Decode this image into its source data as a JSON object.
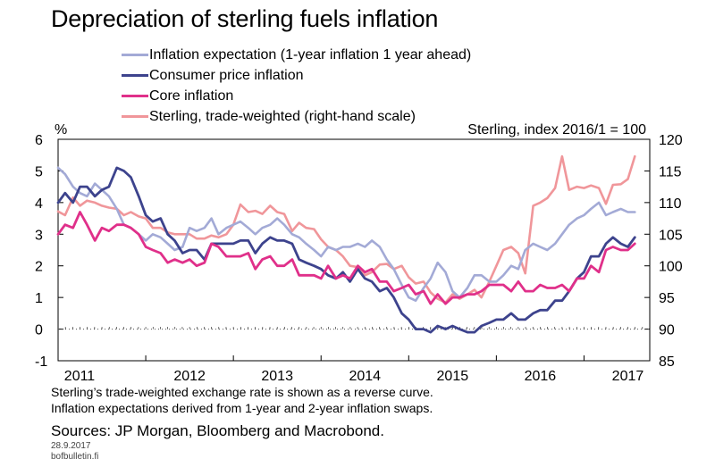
{
  "title": "Depreciation of sterling fuels inflation",
  "colors": {
    "inflation_expectation": "#a3aad6",
    "consumer_price_inflation": "#3d438d",
    "core_inflation": "#e0308a",
    "sterling": "#f0969a"
  },
  "legend": [
    {
      "label": "Inflation expectation (1-year inflation 1 year ahead)",
      "color": "#a3aad6"
    },
    {
      "label": "Consumer price inflation",
      "color": "#3d438d"
    },
    {
      "label": "Core inflation",
      "color": "#e0308a"
    },
    {
      "label": "Sterling, trade-weighted (right-hand scale)",
      "color": "#f0969a"
    }
  ],
  "notes": [
    "Sterling’s trade-weighted exchange rate is shown as a reverse curve.",
    "Inflation expectations derived from 1-year and 2-year inflation swaps."
  ],
  "sources": "Sources: JP Morgan, Bloomberg and Macrobond.",
  "date": "28.9.2017",
  "site": "bofbulletin.fi",
  "chart_data": {
    "type": "line",
    "ylabel": "%",
    "ylabel_right": "Sterling, index 2016/1 = 100",
    "ylim": [
      -1,
      6
    ],
    "ylim_right": [
      85,
      120
    ],
    "right_axis_reversed_curve": true,
    "yticks": [
      "6",
      "5",
      "4",
      "3",
      "2",
      "1",
      "0",
      "-1"
    ],
    "yticks_right": [
      "120",
      "115",
      "110",
      "105",
      "100",
      "95",
      "90",
      "85"
    ],
    "xticks": [
      "2011",
      "2012",
      "2013",
      "2014",
      "2015",
      "2016",
      "2017"
    ],
    "xlim": [
      2011.0,
      2017.75
    ],
    "grid": false,
    "zero_line": "dotted",
    "legend_position": "top",
    "series": [
      {
        "name": "Inflation expectation (1-year inflation 1 year ahead)",
        "key": "inflation_expectation",
        "axis": "left",
        "x": [
          2011.0,
          2011.08,
          2011.17,
          2011.25,
          2011.33,
          2011.42,
          2011.5,
          2011.58,
          2011.67,
          2011.75,
          2011.83,
          2011.92,
          2012.0,
          2012.08,
          2012.17,
          2012.25,
          2012.33,
          2012.42,
          2012.5,
          2012.58,
          2012.67,
          2012.75,
          2012.83,
          2012.92,
          2013.0,
          2013.08,
          2013.17,
          2013.25,
          2013.33,
          2013.42,
          2013.5,
          2013.58,
          2013.67,
          2013.75,
          2013.83,
          2013.92,
          2014.0,
          2014.08,
          2014.17,
          2014.25,
          2014.33,
          2014.42,
          2014.5,
          2014.58,
          2014.67,
          2014.75,
          2014.83,
          2014.92,
          2015.0,
          2015.08,
          2015.17,
          2015.25,
          2015.33,
          2015.42,
          2015.5,
          2015.58,
          2015.67,
          2015.75,
          2015.83,
          2015.92,
          2016.0,
          2016.08,
          2016.17,
          2016.25,
          2016.33,
          2016.42,
          2016.5,
          2016.58,
          2016.67,
          2016.75,
          2016.83,
          2016.92,
          2017.0,
          2017.08,
          2017.17,
          2017.25,
          2017.33,
          2017.42,
          2017.5,
          2017.58
        ],
        "y": [
          5.1,
          4.9,
          4.5,
          4.3,
          4.2,
          4.6,
          4.4,
          4.2,
          3.8,
          3.3,
          3.2,
          3.0,
          2.8,
          3.0,
          2.9,
          2.7,
          2.5,
          2.6,
          3.2,
          3.1,
          3.2,
          3.5,
          3.0,
          3.2,
          3.3,
          3.4,
          3.2,
          3.0,
          3.2,
          3.3,
          3.5,
          3.3,
          3.0,
          2.9,
          2.7,
          2.5,
          2.3,
          2.6,
          2.5,
          2.6,
          2.6,
          2.7,
          2.6,
          2.8,
          2.6,
          2.2,
          1.9,
          1.4,
          1.0,
          0.9,
          1.3,
          1.6,
          2.1,
          1.8,
          1.2,
          1.0,
          1.3,
          1.7,
          1.7,
          1.5,
          1.5,
          1.7,
          2.0,
          1.9,
          2.5,
          2.7,
          2.6,
          2.5,
          2.7,
          3.0,
          3.3,
          3.5,
          3.6,
          3.8,
          4.0,
          3.6,
          3.7,
          3.8,
          3.7,
          3.7
        ]
      },
      {
        "name": "Consumer price inflation",
        "key": "consumer_price_inflation",
        "axis": "left",
        "x": [
          2011.0,
          2011.08,
          2011.17,
          2011.25,
          2011.33,
          2011.42,
          2011.5,
          2011.58,
          2011.67,
          2011.75,
          2011.83,
          2011.92,
          2012.0,
          2012.08,
          2012.17,
          2012.25,
          2012.33,
          2012.42,
          2012.5,
          2012.58,
          2012.67,
          2012.75,
          2012.83,
          2012.92,
          2013.0,
          2013.08,
          2013.17,
          2013.25,
          2013.33,
          2013.42,
          2013.5,
          2013.58,
          2013.67,
          2013.75,
          2013.83,
          2013.92,
          2014.0,
          2014.08,
          2014.17,
          2014.25,
          2014.33,
          2014.42,
          2014.5,
          2014.58,
          2014.67,
          2014.75,
          2014.83,
          2014.92,
          2015.0,
          2015.08,
          2015.17,
          2015.25,
          2015.33,
          2015.42,
          2015.5,
          2015.58,
          2015.67,
          2015.75,
          2015.83,
          2015.92,
          2016.0,
          2016.08,
          2016.17,
          2016.25,
          2016.33,
          2016.42,
          2016.5,
          2016.58,
          2016.67,
          2016.75,
          2016.83,
          2016.92,
          2017.0,
          2017.08,
          2017.17,
          2017.25,
          2017.33,
          2017.42,
          2017.5,
          2017.58
        ],
        "y": [
          4.0,
          4.3,
          4.0,
          4.5,
          4.5,
          4.2,
          4.4,
          4.5,
          5.1,
          5.0,
          4.8,
          4.2,
          3.6,
          3.4,
          3.5,
          3.0,
          2.8,
          2.4,
          2.5,
          2.5,
          2.2,
          2.7,
          2.7,
          2.7,
          2.7,
          2.8,
          2.8,
          2.4,
          2.7,
          2.9,
          2.8,
          2.8,
          2.7,
          2.2,
          2.1,
          2.0,
          1.9,
          1.7,
          1.6,
          1.8,
          1.5,
          1.9,
          1.6,
          1.5,
          1.2,
          1.3,
          1.0,
          0.5,
          0.3,
          0.0,
          0.0,
          -0.1,
          0.1,
          0.0,
          0.1,
          0.0,
          -0.1,
          -0.1,
          0.1,
          0.2,
          0.3,
          0.3,
          0.5,
          0.3,
          0.3,
          0.5,
          0.6,
          0.6,
          0.9,
          0.9,
          1.2,
          1.6,
          1.8,
          2.3,
          2.3,
          2.7,
          2.9,
          2.7,
          2.6,
          2.9
        ]
      },
      {
        "name": "Core inflation",
        "key": "core_inflation",
        "axis": "left",
        "x": [
          2011.0,
          2011.08,
          2011.17,
          2011.25,
          2011.33,
          2011.42,
          2011.5,
          2011.58,
          2011.67,
          2011.75,
          2011.83,
          2011.92,
          2012.0,
          2012.08,
          2012.17,
          2012.25,
          2012.33,
          2012.42,
          2012.5,
          2012.58,
          2012.67,
          2012.75,
          2012.83,
          2012.92,
          2013.0,
          2013.08,
          2013.17,
          2013.25,
          2013.33,
          2013.42,
          2013.5,
          2013.58,
          2013.67,
          2013.75,
          2013.83,
          2013.92,
          2014.0,
          2014.08,
          2014.17,
          2014.25,
          2014.33,
          2014.42,
          2014.5,
          2014.58,
          2014.67,
          2014.75,
          2014.83,
          2014.92,
          2015.0,
          2015.08,
          2015.17,
          2015.25,
          2015.33,
          2015.42,
          2015.5,
          2015.58,
          2015.67,
          2015.75,
          2015.83,
          2015.92,
          2016.0,
          2016.08,
          2016.17,
          2016.25,
          2016.33,
          2016.42,
          2016.5,
          2016.58,
          2016.67,
          2016.75,
          2016.83,
          2016.92,
          2017.0,
          2017.08,
          2017.17,
          2017.25,
          2017.33,
          2017.42,
          2017.5,
          2017.58
        ],
        "y": [
          3.0,
          3.3,
          3.2,
          3.7,
          3.3,
          2.8,
          3.2,
          3.1,
          3.3,
          3.3,
          3.2,
          3.0,
          2.6,
          2.5,
          2.4,
          2.1,
          2.2,
          2.1,
          2.2,
          2.0,
          2.1,
          2.7,
          2.6,
          2.3,
          2.3,
          2.3,
          2.4,
          1.9,
          2.2,
          2.3,
          2.0,
          2.0,
          2.2,
          1.7,
          1.7,
          1.7,
          1.6,
          2.0,
          1.6,
          1.7,
          1.6,
          2.0,
          1.8,
          1.9,
          1.5,
          1.5,
          1.2,
          1.3,
          1.4,
          1.1,
          1.2,
          0.8,
          1.1,
          0.8,
          1.0,
          1.0,
          1.1,
          1.1,
          1.2,
          1.4,
          1.4,
          1.4,
          1.2,
          1.5,
          1.2,
          1.2,
          1.4,
          1.3,
          1.3,
          1.4,
          1.2,
          1.6,
          1.6,
          2.0,
          1.8,
          2.5,
          2.6,
          2.5,
          2.5,
          2.7
        ]
      },
      {
        "name": "Sterling, trade-weighted (right-hand scale)",
        "key": "sterling",
        "axis": "right",
        "x": [
          2011.0,
          2011.08,
          2011.17,
          2011.25,
          2011.33,
          2011.42,
          2011.5,
          2011.58,
          2011.67,
          2011.75,
          2011.83,
          2011.92,
          2012.0,
          2012.08,
          2012.17,
          2012.25,
          2012.33,
          2012.42,
          2012.5,
          2012.58,
          2012.67,
          2012.75,
          2012.83,
          2012.92,
          2013.0,
          2013.08,
          2013.17,
          2013.25,
          2013.33,
          2013.42,
          2013.5,
          2013.58,
          2013.67,
          2013.75,
          2013.83,
          2013.92,
          2014.0,
          2014.08,
          2014.17,
          2014.25,
          2014.33,
          2014.42,
          2014.5,
          2014.58,
          2014.67,
          2014.75,
          2014.83,
          2014.92,
          2015.0,
          2015.08,
          2015.17,
          2015.25,
          2015.33,
          2015.42,
          2015.5,
          2015.58,
          2015.67,
          2015.75,
          2015.83,
          2015.92,
          2016.0,
          2016.08,
          2016.17,
          2016.25,
          2016.33,
          2016.42,
          2016.5,
          2016.58,
          2016.67,
          2016.75,
          2016.83,
          2016.92,
          2017.0,
          2017.08,
          2017.17,
          2017.25,
          2017.33,
          2017.42,
          2017.5,
          2017.58
        ],
        "y": [
          108.6,
          108.0,
          110.8,
          109.5,
          110.3,
          110.0,
          109.5,
          109.2,
          109.0,
          108.0,
          108.5,
          107.8,
          107.5,
          106.0,
          106.0,
          105.3,
          105.0,
          105.0,
          105.0,
          104.3,
          104.3,
          104.8,
          104.5,
          105.0,
          106.5,
          109.7,
          108.5,
          108.7,
          108.2,
          109.5,
          108.5,
          108.2,
          105.5,
          106.8,
          106.0,
          105.8,
          104.2,
          103.0,
          102.5,
          101.5,
          100.0,
          99.8,
          98.5,
          99.0,
          100.2,
          100.3,
          99.5,
          100.0,
          98.2,
          97.2,
          97.5,
          95.8,
          94.8,
          94.2,
          95.5,
          94.8,
          95.5,
          96.2,
          95.0,
          97.5,
          100.0,
          102.5,
          103.0,
          102.0,
          98.8,
          109.5,
          110.0,
          110.7,
          112.3,
          117.3,
          112.0,
          112.5,
          112.3,
          112.7,
          112.3,
          109.8,
          112.8,
          112.9,
          113.7,
          117.3
        ]
      }
    ]
  }
}
